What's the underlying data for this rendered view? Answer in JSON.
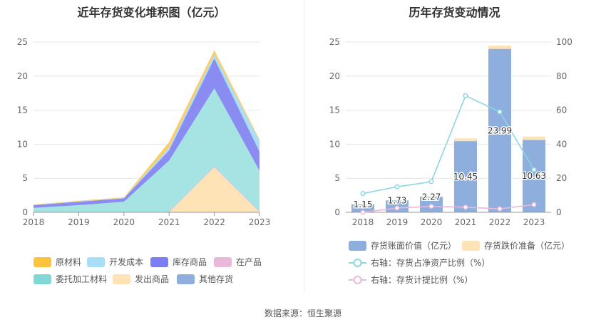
{
  "left_title": "近年存货变化堆积图（亿元）",
  "right_title": "历年存货变动情况",
  "source": "数据来源：恒生聚源",
  "chart_data": [
    {
      "type": "area",
      "stacked": true,
      "title": "近年存货变化堆积图（亿元）",
      "x": [
        "2018",
        "2019",
        "2020",
        "2021",
        "2022",
        "2023"
      ],
      "ylim": [
        0,
        25
      ],
      "yticks": [
        0,
        5,
        10,
        15,
        20,
        25
      ],
      "series": [
        {
          "name": "发出商品",
          "color": "#fde3b5",
          "values": [
            0,
            0,
            0,
            0,
            6.6,
            0
          ]
        },
        {
          "name": "其他存货",
          "color": "#8eaedd",
          "values": [
            0,
            0,
            0,
            0,
            0,
            0
          ]
        },
        {
          "name": "在产品",
          "color": "#e8b9d9",
          "values": [
            0.05,
            0.05,
            0.05,
            0.1,
            0.1,
            0.1
          ]
        },
        {
          "name": "委托加工材料",
          "color": "#a6e3e3",
          "values": [
            0.6,
            1.0,
            1.5,
            7.5,
            11.5,
            6.0
          ]
        },
        {
          "name": "库存商品",
          "color": "#8a8cf2",
          "values": [
            0.4,
            0.5,
            0.5,
            1.5,
            4.4,
            2.8
          ]
        },
        {
          "name": "开发成本",
          "color": "#a9def6",
          "values": [
            0.05,
            0.05,
            0.05,
            0.4,
            0.6,
            1.6
          ]
        },
        {
          "name": "原材料",
          "color": "#fccd63",
          "values": [
            0.05,
            0.1,
            0.1,
            0.8,
            0.6,
            0.2
          ]
        }
      ],
      "legend": {
        "position": "bottom",
        "items": [
          {
            "name": "原材料",
            "color": "#fcc33f"
          },
          {
            "name": "开发成本",
            "color": "#a9def6"
          },
          {
            "name": "库存商品",
            "color": "#7b7ff3"
          },
          {
            "name": "在产品",
            "color": "#e8b9d9"
          },
          {
            "name": "委托加工材料",
            "color": "#7fd8d6"
          },
          {
            "name": "发出商品",
            "color": "#fde3b5"
          },
          {
            "name": "其他存货",
            "color": "#8eaedd"
          }
        ]
      }
    },
    {
      "type": "bar",
      "title": "历年存货变动情况",
      "categories": [
        "2018",
        "2019",
        "2020",
        "2021",
        "2022",
        "2023"
      ],
      "ylim": [
        0,
        25
      ],
      "yticks": [
        0,
        5,
        10,
        15,
        20,
        25
      ],
      "y2lim": [
        0,
        100
      ],
      "y2ticks": [
        0,
        20,
        40,
        60,
        80,
        100
      ],
      "bars": [
        {
          "name": "存货账面价值（亿元）",
          "color": "#8eaedd",
          "values": [
            1.15,
            1.73,
            2.27,
            10.45,
            23.99,
            10.63
          ],
          "labels": [
            "1.15",
            "1.73",
            "2.27",
            "10.45",
            "23.99",
            "10.63"
          ]
        },
        {
          "name": "存货跌价准备（亿元）",
          "color": "#fde3b5",
          "values": [
            0.02,
            0.04,
            0.08,
            0.4,
            0.5,
            0.5
          ]
        }
      ],
      "lines": [
        {
          "name": "右轴：存货占净资产比例（%）",
          "axis": "right",
          "color": "#8dd6e3",
          "values": [
            11,
            15,
            18,
            68.5,
            59,
            25
          ]
        },
        {
          "name": "右轴：存货计提比例（%）",
          "axis": "right",
          "color": "#e8b9d9",
          "values": [
            0,
            2.5,
            3.5,
            3,
            2,
            4.5
          ]
        }
      ],
      "legend": {
        "position": "bottom"
      }
    }
  ]
}
